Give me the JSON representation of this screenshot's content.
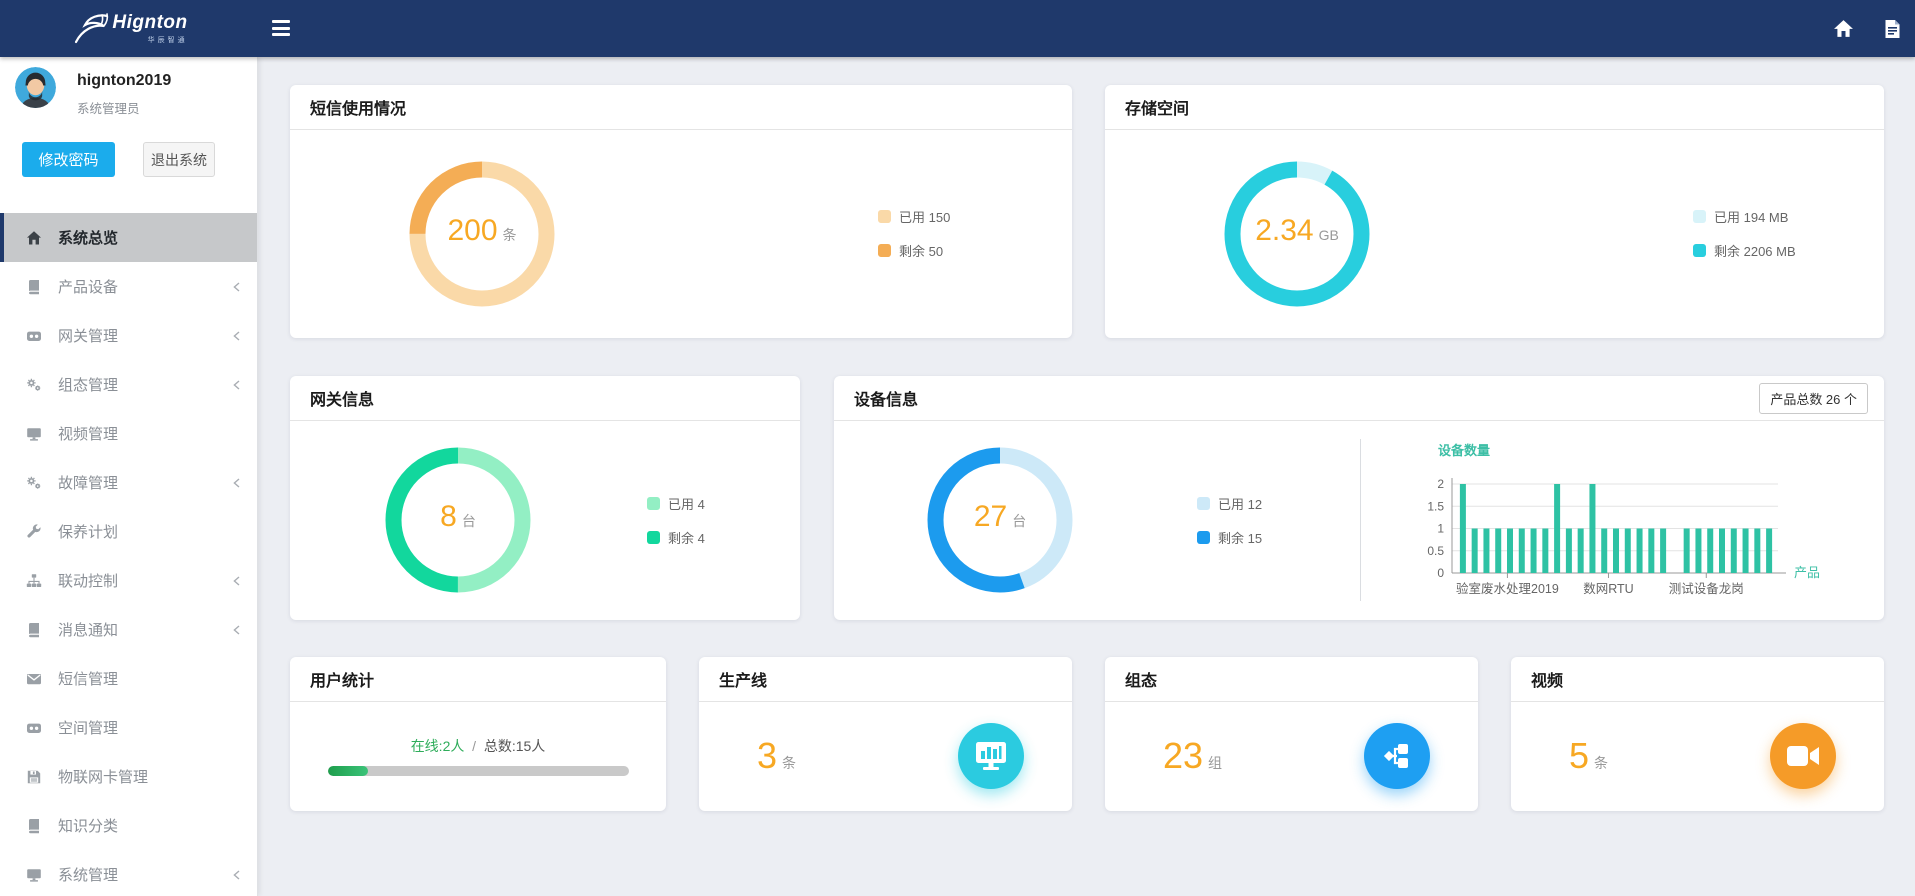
{
  "brand": {
    "name": "Hignton",
    "subtitle": "华辰智通"
  },
  "topbar": {
    "icons": [
      "hamburger-icon",
      "home-icon",
      "document-icon"
    ]
  },
  "user": {
    "name": "hignton2019",
    "role": "系统管理员",
    "change_password": "修改密码",
    "logout": "退出系统"
  },
  "sidebar": {
    "items": [
      {
        "key": "overview",
        "label": "系统总览",
        "icon": "home",
        "active": true,
        "expandable": false
      },
      {
        "key": "product",
        "label": "产品设备",
        "icon": "book",
        "active": false,
        "expandable": true
      },
      {
        "key": "gateway",
        "label": "网关管理",
        "icon": "robot",
        "active": false,
        "expandable": true
      },
      {
        "key": "scada",
        "label": "组态管理",
        "icon": "cogs",
        "active": false,
        "expandable": true
      },
      {
        "key": "video",
        "label": "视频管理",
        "icon": "monitor",
        "active": false,
        "expandable": false
      },
      {
        "key": "fault",
        "label": "故障管理",
        "icon": "cogs",
        "active": false,
        "expandable": true
      },
      {
        "key": "maintenance",
        "label": "保养计划",
        "icon": "wrench",
        "active": false,
        "expandable": false
      },
      {
        "key": "linkage",
        "label": "联动控制",
        "icon": "sitemap",
        "active": false,
        "expandable": true
      },
      {
        "key": "message",
        "label": "消息通知",
        "icon": "book",
        "active": false,
        "expandable": true
      },
      {
        "key": "sms",
        "label": "短信管理",
        "icon": "envelope",
        "active": false,
        "expandable": false
      },
      {
        "key": "space",
        "label": "空间管理",
        "icon": "robot",
        "active": false,
        "expandable": false
      },
      {
        "key": "iot-card",
        "label": "物联网卡管理",
        "icon": "floppy",
        "active": false,
        "expandable": false
      },
      {
        "key": "knowledge",
        "label": "知识分类",
        "icon": "book",
        "active": false,
        "expandable": false
      },
      {
        "key": "system",
        "label": "系统管理",
        "icon": "monitor",
        "active": false,
        "expandable": true
      }
    ]
  },
  "cards": {
    "sms": {
      "title": "短信使用情况",
      "center_value": "200",
      "center_unit": "条",
      "legend": [
        {
          "label": "已用 150",
          "color": "#FAD9A8"
        },
        {
          "label": "剩余 50",
          "color": "#F4AD55"
        }
      ]
    },
    "storage": {
      "title": "存储空间",
      "center_value": "2.34",
      "center_unit": "GB",
      "legend": [
        {
          "label": "已用 194 MB",
          "color": "#D8F3F9"
        },
        {
          "label": "剩余 2206 MB",
          "color": "#28CEDE"
        }
      ]
    },
    "gateway": {
      "title": "网关信息",
      "center_value": "8",
      "center_unit": "台",
      "legend": [
        {
          "label": "已用 4",
          "color": "#93EFC4"
        },
        {
          "label": "剩余 4",
          "color": "#12D79D"
        }
      ]
    },
    "device": {
      "title": "设备信息",
      "badge": "产品总数 26 个",
      "center_value": "27",
      "center_unit": "台",
      "legend": [
        {
          "label": "已用 12",
          "color": "#CDE9F8"
        },
        {
          "label": "剩余 15",
          "color": "#1C9BEE"
        }
      ]
    },
    "users": {
      "title": "用户统计",
      "online_label": "在线:2人",
      "separator": "/",
      "total_label": "总数:15人"
    },
    "production": {
      "title": "生产线",
      "value": "3",
      "unit": "条"
    },
    "scada": {
      "title": "组态",
      "value": "23",
      "unit": "组"
    },
    "video": {
      "title": "视频",
      "value": "5",
      "unit": "条"
    }
  },
  "chart_data": [
    {
      "id": "sms_donut",
      "type": "pie",
      "title": "短信使用情况",
      "center": "200 条",
      "series": [
        {
          "name": "已用",
          "value": 150,
          "color": "#FAD9A8"
        },
        {
          "name": "剩余",
          "value": 50,
          "color": "#F4AD55"
        }
      ]
    },
    {
      "id": "storage_donut",
      "type": "pie",
      "title": "存储空间",
      "center": "2.34 GB",
      "series": [
        {
          "name": "已用",
          "value": 194,
          "color": "#D8F3F9"
        },
        {
          "name": "剩余",
          "value": 2206,
          "color": "#28CEDE"
        }
      ]
    },
    {
      "id": "gateway_donut",
      "type": "pie",
      "title": "网关信息",
      "center": "8 台",
      "series": [
        {
          "name": "已用",
          "value": 4,
          "color": "#93EFC4"
        },
        {
          "name": "剩余",
          "value": 4,
          "color": "#12D79D"
        }
      ]
    },
    {
      "id": "device_donut",
      "type": "pie",
      "title": "设备信息",
      "center": "27 台",
      "series": [
        {
          "name": "已用",
          "value": 12,
          "color": "#CDE9F8"
        },
        {
          "name": "剩余",
          "value": 15,
          "color": "#1C9BEE"
        }
      ]
    },
    {
      "id": "device_bar",
      "type": "bar",
      "title": "设备数量",
      "xlabel": "产品",
      "ylim": [
        0,
        2
      ],
      "y_ticks": [
        "0",
        "0.5",
        "1",
        "1.5",
        "2"
      ],
      "grid": true,
      "x_tick_labels": [
        "验室废水处理2019",
        "数网RTU",
        "测试设备龙岗"
      ],
      "values": [
        2,
        1,
        1,
        1,
        1,
        1,
        1,
        1,
        2,
        1,
        1,
        2,
        1,
        1,
        1,
        1,
        1,
        1,
        0,
        1,
        1,
        1,
        1,
        1,
        1,
        1,
        1
      ],
      "bar_color": "#2EC2A4",
      "label_color": "#3DBFA6"
    },
    {
      "id": "user_progress",
      "type": "progress",
      "online": 2,
      "total": 15,
      "fill_color": "#2FAD5B",
      "track_color": "#C9C9C9"
    }
  ]
}
